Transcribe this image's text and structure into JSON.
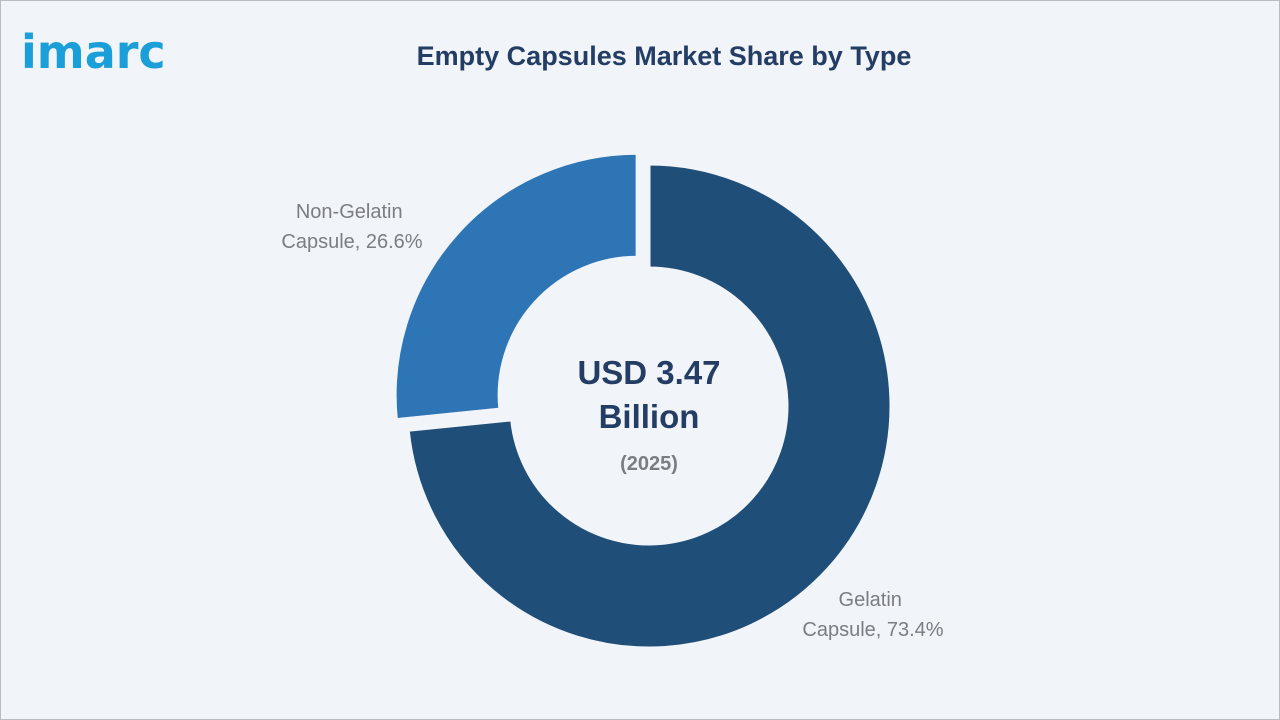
{
  "brand": {
    "logo_text": "imarc",
    "logo_color": "#1a9fd8"
  },
  "chart_data": {
    "type": "pie",
    "variant": "donut",
    "title": "Empty Capsules Market Share by Type",
    "center_text": {
      "line1": "USD 3.47",
      "line2": "Billion",
      "line3": "(2025)"
    },
    "slices": [
      {
        "label_line1": "Non-Gelatin",
        "label_line2": "Capsule, 26.6%",
        "category": "Non-Gelatin Capsule",
        "value": 26.6,
        "color": "#2e75b6",
        "exploded": true
      },
      {
        "label_line1": "Gelatin",
        "label_line2": "Capsule, 73.4%",
        "category": "Gelatin Capsule",
        "value": 73.4,
        "color": "#1f4e79",
        "exploded": false
      }
    ],
    "unit": "%"
  }
}
